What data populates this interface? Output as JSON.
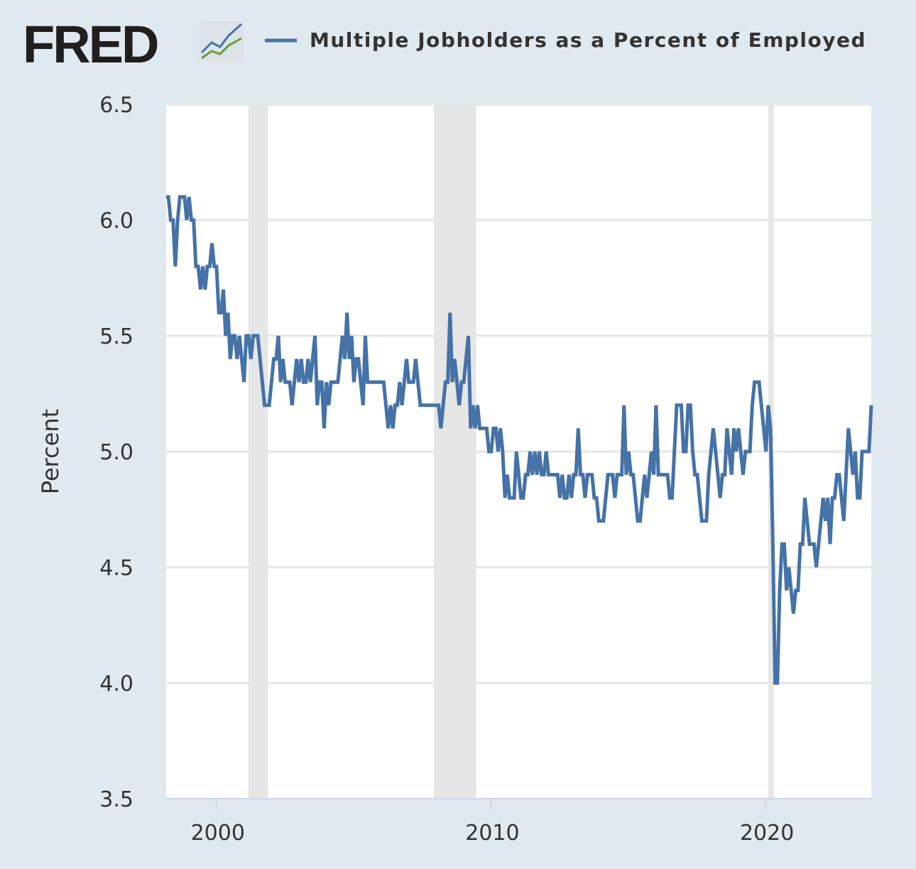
{
  "header": {
    "logo": "FRED",
    "legend_label": "Multiple Jobholders as a Percent of Employed"
  },
  "colors": {
    "series": "#4572a7",
    "background": "#e1e9f0",
    "recession": "#e6e6e6",
    "grid": "#e6e6e6"
  },
  "chart_data": {
    "type": "line",
    "title": "Multiple Jobholders as a Percent of Employed",
    "xlabel": "",
    "ylabel": "Percent",
    "ylim": [
      3.5,
      6.5
    ],
    "xlim": [
      1998.17,
      2023.85
    ],
    "y_ticks": [
      "3.5",
      "4.0",
      "4.5",
      "5.0",
      "5.5",
      "6.0",
      "6.5"
    ],
    "x_ticks": [
      "2000",
      "2010",
      "2020"
    ],
    "grid": true,
    "legend": "top",
    "recessions": [
      [
        2001.17,
        2001.88
      ],
      [
        2007.92,
        2009.46
      ],
      [
        2020.1,
        2020.3
      ]
    ],
    "series": [
      {
        "name": "Multiple Jobholders as a Percent of Employed",
        "frequency": "monthly",
        "start": "1998-03",
        "values": [
          6.1,
          6.1,
          6.0,
          6.0,
          5.8,
          6.0,
          6.1,
          6.1,
          6.1,
          6.0,
          6.1,
          6.0,
          6.0,
          5.8,
          5.8,
          5.7,
          5.8,
          5.7,
          5.8,
          5.8,
          5.9,
          5.8,
          5.8,
          5.6,
          5.6,
          5.7,
          5.5,
          5.6,
          5.4,
          5.5,
          5.5,
          5.4,
          5.5,
          5.4,
          5.3,
          5.5,
          5.5,
          5.4,
          5.5,
          5.5,
          5.5,
          5.4,
          5.3,
          5.2,
          5.2,
          5.2,
          5.3,
          5.4,
          5.4,
          5.5,
          5.3,
          5.4,
          5.3,
          5.3,
          5.3,
          5.2,
          5.3,
          5.4,
          5.3,
          5.4,
          5.3,
          5.3,
          5.4,
          5.3,
          5.4,
          5.5,
          5.2,
          5.3,
          5.3,
          5.1,
          5.3,
          5.2,
          5.3,
          5.3,
          5.3,
          5.3,
          5.4,
          5.5,
          5.4,
          5.6,
          5.4,
          5.5,
          5.3,
          5.4,
          5.4,
          5.3,
          5.2,
          5.5,
          5.3,
          5.3,
          5.3,
          5.3,
          5.3,
          5.3,
          5.3,
          5.3,
          5.2,
          5.1,
          5.2,
          5.1,
          5.2,
          5.2,
          5.3,
          5.2,
          5.3,
          5.4,
          5.3,
          5.3,
          5.3,
          5.4,
          5.3,
          5.2,
          5.2,
          5.2,
          5.2,
          5.2,
          5.2,
          5.2,
          5.2,
          5.2,
          5.1,
          5.2,
          5.3,
          5.3,
          5.6,
          5.3,
          5.4,
          5.3,
          5.2,
          5.3,
          5.3,
          5.4,
          5.5,
          5.1,
          5.2,
          5.1,
          5.2,
          5.1,
          5.1,
          5.1,
          5.1,
          5.0,
          5.0,
          5.1,
          5.1,
          5.0,
          5.1,
          5.0,
          4.8,
          4.9,
          4.8,
          4.8,
          4.8,
          5.0,
          4.9,
          4.8,
          4.8,
          4.9,
          4.9,
          5.0,
          4.9,
          5.0,
          4.9,
          5.0,
          4.9,
          4.9,
          5.0,
          4.9,
          4.9,
          4.9,
          4.9,
          4.9,
          4.8,
          4.9,
          4.8,
          4.8,
          4.9,
          4.8,
          4.9,
          4.9,
          5.1,
          4.9,
          4.9,
          4.8,
          4.9,
          4.9,
          4.9,
          4.8,
          4.8,
          4.7,
          4.7,
          4.7,
          4.8,
          4.9,
          4.9,
          4.9,
          4.8,
          4.9,
          4.9,
          4.9,
          5.2,
          4.9,
          5.0,
          4.9,
          4.9,
          4.8,
          4.7,
          4.7,
          4.8,
          4.9,
          4.8,
          4.9,
          5.0,
          4.9,
          5.2,
          4.9,
          4.9,
          4.9,
          4.9,
          4.9,
          4.8,
          4.8,
          5.0,
          5.2,
          5.2,
          5.2,
          5.0,
          5.0,
          5.2,
          5.2,
          5.0,
          4.9,
          4.9,
          4.8,
          4.7,
          4.7,
          4.7,
          4.9,
          5.0,
          5.1,
          5.0,
          4.9,
          4.8,
          4.9,
          4.9,
          5.1,
          5.0,
          4.9,
          5.1,
          5.0,
          5.1,
          5.0,
          4.9,
          5.0,
          5.0,
          5.0,
          5.2,
          5.3,
          5.3,
          5.3,
          5.2,
          5.1,
          5.0,
          5.2,
          5.1,
          4.6,
          4.0,
          4.0,
          4.4,
          4.6,
          4.6,
          4.4,
          4.5,
          4.4,
          4.3,
          4.4,
          4.4,
          4.6,
          4.6,
          4.8,
          4.7,
          4.6,
          4.6,
          4.6,
          4.5,
          4.6,
          4.7,
          4.8,
          4.7,
          4.8,
          4.6,
          4.8,
          4.8,
          4.9,
          4.9,
          4.8,
          4.7,
          4.9,
          5.1,
          5.0,
          4.9,
          5.0,
          4.8,
          4.8,
          5.0,
          5.0,
          5.0,
          5.0,
          5.2
        ]
      }
    ]
  }
}
